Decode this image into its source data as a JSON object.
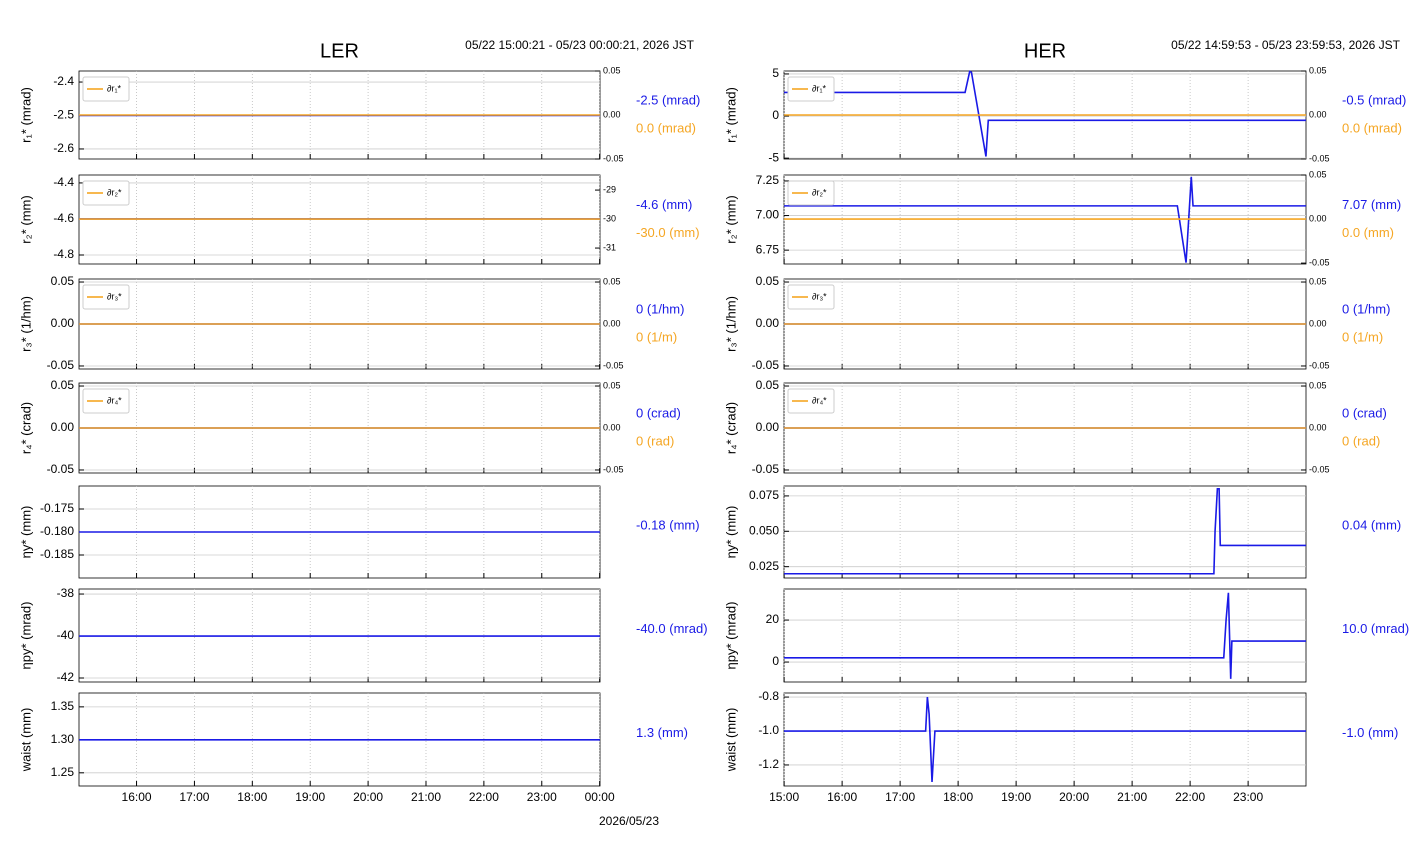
{
  "chart_data": [
    {
      "type": "line",
      "title": "LER",
      "subtitle": "05/22 15:00:21 - 05/23 00:00:21, 2026 JST",
      "xlabel": "2026/05/23",
      "xlim": [
        15.006,
        24.006
      ],
      "xticks": [
        {
          "value": 16,
          "label": "16:00"
        },
        {
          "value": 17,
          "label": "17:00"
        },
        {
          "value": 18,
          "label": "18:00"
        },
        {
          "value": 19,
          "label": "19:00"
        },
        {
          "value": 20,
          "label": "20:00"
        },
        {
          "value": 21,
          "label": "21:00"
        },
        {
          "value": 22,
          "label": "22:00"
        },
        {
          "value": 23,
          "label": "23:00"
        },
        {
          "value": 24,
          "label": "00:00"
        }
      ],
      "panels": [
        {
          "type": "line",
          "ylabel": "r₁* (mrad)",
          "ylim": [
            -2.63,
            -2.367
          ],
          "yticks": [
            -2.4,
            -2.5,
            -2.6
          ],
          "y2lim": [
            -0.05,
            0.05
          ],
          "y2ticks": [
            0.05,
            {
              "value": 0,
              "label": "0.00"
            },
            -0.05
          ],
          "series": [
            {
              "color": "#1a1ae6",
              "x": [
                15.006,
                24.006
              ],
              "values": [
                -2.5,
                -2.5
              ]
            },
            {
              "name": "∂r₁*",
              "color": "#f5a623",
              "axis": "y2",
              "x": [
                15.006,
                24.006
              ],
              "values": [
                0,
                0
              ]
            }
          ],
          "readouts": [
            {
              "text": "-2.5 (mrad)",
              "color": "#1a1ae6"
            },
            {
              "text": "0.0 (mrad)",
              "color": "#f5a623"
            }
          ]
        },
        {
          "type": "line",
          "ylabel": "r₂* (mm)",
          "ylim": [
            -4.85,
            -4.356
          ],
          "yticks": [
            -4.4,
            -4.6,
            -4.8
          ],
          "y2lim": [
            -31.55,
            -28.48
          ],
          "y2ticks": [
            -29,
            -30,
            -31
          ],
          "series": [
            {
              "color": "#1a1ae6",
              "x": [
                15.006,
                24.006
              ],
              "values": [
                -4.6,
                -4.6
              ]
            },
            {
              "name": "∂r₂*",
              "color": "#f5a623",
              "axis": "y2",
              "x": [
                15.006,
                24.006
              ],
              "values": [
                -30,
                -30
              ]
            }
          ],
          "readouts": [
            {
              "text": "-4.6 (mm)",
              "color": "#1a1ae6"
            },
            {
              "text": "-30.0 (mm)",
              "color": "#f5a623"
            }
          ]
        },
        {
          "type": "line",
          "ylabel": "r₃* (1/hm)",
          "ylim": [
            -0.0536,
            0.0536
          ],
          "yticks": [
            0.05,
            {
              "value": 0,
              "label": "0.00"
            },
            -0.05
          ],
          "y2lim": [
            -0.0536,
            0.0536
          ],
          "y2ticks": [
            0.05,
            {
              "value": 0,
              "label": "0.00"
            },
            -0.05
          ],
          "series": [
            {
              "color": "#1a1ae6",
              "x": [
                15.006,
                24.006
              ],
              "values": [
                0,
                0
              ]
            },
            {
              "name": "∂r₃*",
              "color": "#f5a623",
              "axis": "y2",
              "x": [
                15.006,
                24.006
              ],
              "values": [
                0,
                0
              ]
            }
          ],
          "readouts": [
            {
              "text": "0 (1/hm)",
              "color": "#1a1ae6"
            },
            {
              "text": "0 (1/m)",
              "color": "#f5a623"
            }
          ]
        },
        {
          "type": "line",
          "ylabel": "r₄* (crad)",
          "ylim": [
            -0.0536,
            0.0536
          ],
          "yticks": [
            0.05,
            {
              "value": 0,
              "label": "0.00"
            },
            -0.05
          ],
          "y2lim": [
            -0.0536,
            0.0536
          ],
          "y2ticks": [
            0.05,
            {
              "value": 0,
              "label": "0.00"
            },
            -0.05
          ],
          "series": [
            {
              "color": "#1a1ae6",
              "x": [
                15.006,
                24.006
              ],
              "values": [
                0,
                0
              ]
            },
            {
              "name": "∂r₄*",
              "color": "#f5a623",
              "axis": "y2",
              "x": [
                15.006,
                24.006
              ],
              "values": [
                0,
                0
              ]
            }
          ],
          "readouts": [
            {
              "text": "0 (crad)",
              "color": "#1a1ae6"
            },
            {
              "text": "0 (rad)",
              "color": "#f5a623"
            }
          ]
        },
        {
          "type": "line",
          "ylabel": "ηy* (mm)",
          "ylim": [
            -0.19,
            -0.17
          ],
          "yticks": [
            -0.175,
            {
              "value": -0.18,
              "label": "-0.180"
            },
            -0.185
          ],
          "series": [
            {
              "color": "#1a1ae6",
              "x": [
                15.006,
                24.006
              ],
              "values": [
                -0.18,
                -0.18
              ]
            }
          ],
          "readouts": [
            {
              "text": "-0.18 (mm)",
              "color": "#1a1ae6"
            }
          ]
        },
        {
          "type": "line",
          "ylabel": "ηpy* (mrad)",
          "ylim": [
            -42.19,
            -37.76
          ],
          "yticks": [
            -38,
            -40,
            -42
          ],
          "series": [
            {
              "color": "#1a1ae6",
              "x": [
                15.006,
                24.006
              ],
              "values": [
                -40,
                -40
              ]
            }
          ],
          "readouts": [
            {
              "text": "-40.0 (mrad)",
              "color": "#1a1ae6"
            }
          ]
        },
        {
          "type": "line",
          "ylabel": "waist (mm)",
          "ylim": [
            1.23,
            1.371
          ],
          "yticks": [
            1.35,
            {
              "value": 1.3,
              "label": "1.30"
            },
            1.25
          ],
          "series": [
            {
              "color": "#1a1ae6",
              "x": [
                15.006,
                24.006
              ],
              "values": [
                1.3,
                1.3
              ]
            }
          ],
          "readouts": [
            {
              "text": "1.3 (mm)",
              "color": "#1a1ae6"
            }
          ]
        }
      ]
    },
    {
      "type": "line",
      "title": "HER",
      "subtitle": "05/22 14:59:53 - 05/23 23:59:53, 2026 JST",
      "xlim": [
        14.998,
        23.998
      ],
      "xticks": [
        {
          "value": 15,
          "label": "15:00"
        },
        {
          "value": 16,
          "label": "16:00"
        },
        {
          "value": 17,
          "label": "17:00"
        },
        {
          "value": 18,
          "label": "18:00"
        },
        {
          "value": 19,
          "label": "19:00"
        },
        {
          "value": 20,
          "label": "20:00"
        },
        {
          "value": 21,
          "label": "21:00"
        },
        {
          "value": 22,
          "label": "22:00"
        },
        {
          "value": 23,
          "label": "23:00"
        }
      ],
      "panels": [
        {
          "type": "line",
          "ylabel": "r₁* (mrad)",
          "ylim": [
            -5.1,
            5.35
          ],
          "yticks": [
            5,
            0,
            -5
          ],
          "y2lim": [
            -0.05,
            0.05
          ],
          "y2ticks": [
            0.05,
            {
              "value": 0,
              "label": "0.00"
            },
            -0.05
          ],
          "series": [
            {
              "color": "#1a1ae6",
              "x": [
                14.998,
                18.12,
                18.2,
                18.23,
                18.48,
                18.52,
                23.998
              ],
              "values": [
                2.8,
                2.8,
                5.3,
                5.2,
                -4.8,
                -0.5,
                -0.5
              ]
            },
            {
              "name": "∂r₁*",
              "color": "#f5a623",
              "axis": "y2",
              "x": [
                14.998,
                23.998
              ],
              "values": [
                0,
                0
              ]
            }
          ],
          "readouts": [
            {
              "text": "-0.5 (mrad)",
              "color": "#1a1ae6"
            },
            {
              "text": "0.0 (mrad)",
              "color": "#f5a623"
            }
          ]
        },
        {
          "type": "line",
          "ylabel": "r₂* (mm)",
          "ylim": [
            6.65,
            7.293
          ],
          "yticks": [
            7.25,
            {
              "value": 7,
              "label": "7.00"
            },
            6.75
          ],
          "y2lim": [
            -0.051,
            0.05
          ],
          "y2ticks": [
            0.05,
            {
              "value": 0,
              "label": "0.00"
            },
            -0.05
          ],
          "series": [
            {
              "color": "#1a1ae6",
              "x": [
                14.998,
                21.78,
                21.93,
                22.02,
                22.05,
                23.998
              ],
              "values": [
                7.07,
                7.07,
                6.66,
                7.28,
                7.07,
                7.07
              ]
            },
            {
              "name": "∂r₂*",
              "color": "#f5a623",
              "axis": "y2",
              "x": [
                14.998,
                23.998
              ],
              "values": [
                0,
                0
              ]
            }
          ],
          "readouts": [
            {
              "text": "7.07 (mm)",
              "color": "#1a1ae6"
            },
            {
              "text": "0.0 (mm)",
              "color": "#f5a623"
            }
          ]
        },
        {
          "type": "line",
          "ylabel": "r₃* (1/hm)",
          "ylim": [
            -0.0536,
            0.0536
          ],
          "yticks": [
            0.05,
            {
              "value": 0,
              "label": "0.00"
            },
            -0.05
          ],
          "y2lim": [
            -0.0536,
            0.0536
          ],
          "y2ticks": [
            0.05,
            {
              "value": 0,
              "label": "0.00"
            },
            -0.05
          ],
          "series": [
            {
              "color": "#1a1ae6",
              "x": [
                14.998,
                23.998
              ],
              "values": [
                0,
                0
              ]
            },
            {
              "name": "∂r₃*",
              "color": "#f5a623",
              "axis": "y2",
              "x": [
                14.998,
                23.998
              ],
              "values": [
                0,
                0
              ]
            }
          ],
          "readouts": [
            {
              "text": "0 (1/hm)",
              "color": "#1a1ae6"
            },
            {
              "text": "0 (1/m)",
              "color": "#f5a623"
            }
          ]
        },
        {
          "type": "line",
          "ylabel": "r₄* (crad)",
          "ylim": [
            -0.0536,
            0.0536
          ],
          "yticks": [
            0.05,
            {
              "value": 0,
              "label": "0.00"
            },
            -0.05
          ],
          "y2lim": [
            -0.0536,
            0.0536
          ],
          "y2ticks": [
            0.05,
            {
              "value": 0,
              "label": "0.00"
            },
            -0.05
          ],
          "series": [
            {
              "color": "#1a1ae6",
              "x": [
                14.998,
                23.998
              ],
              "values": [
                0,
                0
              ]
            },
            {
              "name": "∂r₄*",
              "color": "#f5a623",
              "axis": "y2",
              "x": [
                14.998,
                23.998
              ],
              "values": [
                0,
                0
              ]
            }
          ],
          "readouts": [
            {
              "text": "0 (crad)",
              "color": "#1a1ae6"
            },
            {
              "text": "0 (rad)",
              "color": "#f5a623"
            }
          ]
        },
        {
          "type": "line",
          "ylabel": "ηy* (mm)",
          "ylim": [
            0.017,
            0.082
          ],
          "yticks": [
            0.075,
            {
              "value": 0.05,
              "label": "0.050"
            },
            0.025
          ],
          "series": [
            {
              "color": "#1a1ae6",
              "x": [
                14.998,
                22.41,
                22.43,
                22.47,
                22.5,
                22.52,
                23.998
              ],
              "values": [
                0.02,
                0.02,
                0.05,
                0.08,
                0.08,
                0.04,
                0.04
              ]
            }
          ],
          "readouts": [
            {
              "text": "0.04 (mm)",
              "color": "#1a1ae6"
            }
          ]
        },
        {
          "type": "line",
          "ylabel": "ηpy* (mrad)",
          "ylim": [
            -9.5,
            34.8
          ],
          "yticks": [
            20,
            0
          ],
          "series": [
            {
              "color": "#1a1ae6",
              "x": [
                14.998,
                22.58,
                22.62,
                22.66,
                22.7,
                22.72,
                23.998
              ],
              "values": [
                2,
                2,
                20,
                33,
                -8,
                10,
                10
              ]
            }
          ],
          "readouts": [
            {
              "text": "10.0 (mrad)",
              "color": "#1a1ae6"
            }
          ]
        },
        {
          "type": "line",
          "ylabel": "waist (mm)",
          "ylim": [
            -1.324,
            -0.776
          ],
          "yticks": [
            -0.8,
            {
              "value": -1,
              "label": "-1.0"
            },
            -1.2
          ],
          "series": [
            {
              "color": "#1a1ae6",
              "x": [
                14.998,
                17.44,
                17.47,
                17.5,
                17.55,
                17.6,
                23.998
              ],
              "values": [
                -1,
                -1,
                -0.8,
                -0.9,
                -1.3,
                -1,
                -1
              ]
            }
          ],
          "readouts": [
            {
              "text": "-1.0 (mm)",
              "color": "#1a1ae6"
            }
          ]
        }
      ]
    }
  ]
}
